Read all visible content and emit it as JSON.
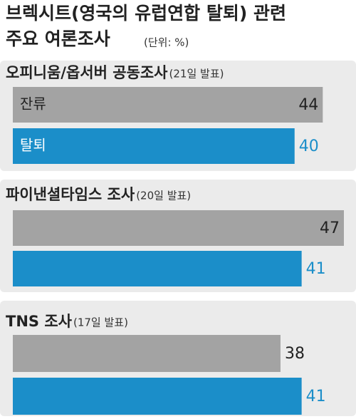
{
  "header": {
    "title_line1": "브렉시트(영국의 유럽연합 탈퇴) 관련",
    "title_line2": "주요 여론조사",
    "unit": "(단위: %)"
  },
  "chart_data": [
    {
      "type": "bar",
      "title": "오피니움/옵서버 공동조사",
      "subtitle": "(21일 발표)",
      "categories": [
        "잔류",
        "탈퇴"
      ],
      "values": [
        44,
        40
      ],
      "colors": [
        "#a3a3a3",
        "#1b8ec9"
      ]
    },
    {
      "type": "bar",
      "title": "파이낸셜타임스 조사",
      "subtitle": "(20일 발표)",
      "categories": [
        null,
        null
      ],
      "values": [
        47,
        41
      ],
      "colors": [
        "#a3a3a3",
        "#1b8ec9"
      ]
    },
    {
      "type": "bar",
      "title": "TNS 조사",
      "subtitle": "(17일 발표)",
      "categories": [
        null,
        null
      ],
      "values": [
        38,
        41
      ],
      "colors": [
        "#a3a3a3",
        "#1b8ec9"
      ]
    }
  ]
}
